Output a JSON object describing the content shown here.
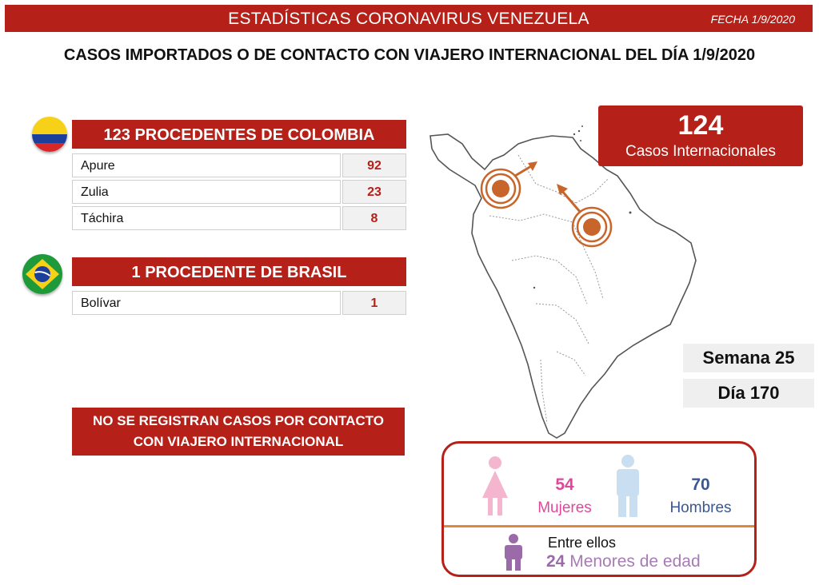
{
  "header": {
    "title": "ESTADÍSTICAS CORONAVIRUS VENEZUELA",
    "date": "FECHA 1/9/2020"
  },
  "subtitle": "CASOS IMPORTADOS O DE CONTACTO CON VIAJERO INTERNACIONAL DEL DÍA  1/9/2020",
  "colombia": {
    "heading": "123 PROCEDENTES DE COLOMBIA",
    "rows": [
      {
        "name": "Apure",
        "value": "92"
      },
      {
        "name": "Zulia",
        "value": "23"
      },
      {
        "name": "Táchira",
        "value": "8"
      }
    ]
  },
  "brasil": {
    "heading": "1 PROCEDENTE DE BRASIL",
    "rows": [
      {
        "name": "Bolívar",
        "value": "1"
      }
    ]
  },
  "note": {
    "line1": "NO SE REGISTRAN CASOS POR CONTACTO",
    "line2": "CON VIAJERO INTERNACIONAL"
  },
  "international": {
    "count": "124",
    "label": "Casos Internacionales"
  },
  "week": {
    "week_label": "Semana 25",
    "day_label": "Día 170"
  },
  "gender": {
    "women_count": "54",
    "women_label": "Mujeres",
    "men_count": "70",
    "men_label": "Hombres",
    "minors_intro": "Entre ellos",
    "minors_count": "24",
    "minors_label": "Menores de edad"
  },
  "icons": {
    "flag_colombia": "colombia-flag-icon",
    "flag_brasil": "brazil-flag-icon",
    "woman": "woman-icon",
    "man": "man-icon",
    "child": "child-icon"
  },
  "colors": {
    "accent_red": "#b52018",
    "women_pink": "#e0479b",
    "men_blue": "#3a5794",
    "minor_purple": "#9b6aa8",
    "divider_orange": "#e0873c",
    "marker_orange": "#c8652a"
  }
}
